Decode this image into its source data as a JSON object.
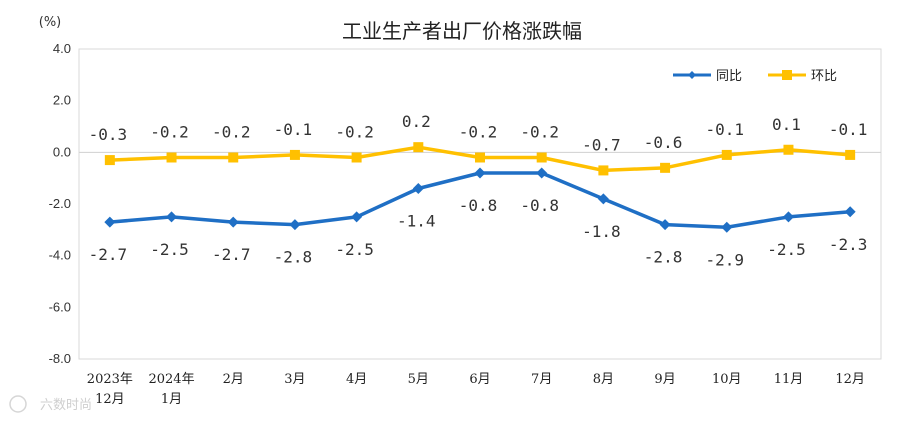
{
  "chart_data": {
    "type": "line",
    "title": "工业生产者出厂价格涨跌幅",
    "unit_label": "(%)",
    "categories": [
      [
        "2023年",
        "12月"
      ],
      [
        "2024年",
        "1月"
      ],
      [
        "2月"
      ],
      [
        "3月"
      ],
      [
        "4月"
      ],
      [
        "5月"
      ],
      [
        "6月"
      ],
      [
        "7月"
      ],
      [
        "8月"
      ],
      [
        "9月"
      ],
      [
        "10月"
      ],
      [
        "11月"
      ],
      [
        "12月"
      ]
    ],
    "ylim": [
      -8.0,
      4.0
    ],
    "yticks": [
      4.0,
      2.0,
      0.0,
      -2.0,
      -4.0,
      -6.0,
      -8.0
    ],
    "ytick_labels": [
      "4.0",
      "2.0",
      "0.0",
      "-2.0",
      "-4.0",
      "-6.0",
      "-8.0"
    ],
    "series": [
      {
        "name": "同比",
        "color": "#1f6fc5",
        "marker": "diamond",
        "label_position": "below",
        "values": [
          -2.7,
          -2.5,
          -2.7,
          -2.8,
          -2.5,
          -1.4,
          -0.8,
          -0.8,
          -1.8,
          -2.8,
          -2.9,
          -2.5,
          -2.3
        ],
        "labels": [
          "-2.7",
          "-2.5",
          "-2.7",
          "-2.8",
          "-2.5",
          "-1.4",
          "-0.8",
          "-0.8",
          "-1.8",
          "-2.8",
          "-2.9",
          "-2.5",
          "-2.3"
        ]
      },
      {
        "name": "环比",
        "color": "#ffc000",
        "marker": "square",
        "label_position": "above",
        "values": [
          -0.3,
          -0.2,
          -0.2,
          -0.1,
          -0.2,
          0.2,
          -0.2,
          -0.2,
          -0.7,
          -0.6,
          -0.1,
          0.1,
          -0.1
        ],
        "labels": [
          "-0.3",
          "-0.2",
          "-0.2",
          "-0.1",
          "-0.2",
          "0.2",
          "-0.2",
          "-0.2",
          "-0.7",
          "-0.6",
          "-0.1",
          "0.1",
          "-0.1"
        ]
      }
    ],
    "legend_position": "top-right",
    "grid": false,
    "zero_line": true
  },
  "watermark": "六数时尚"
}
